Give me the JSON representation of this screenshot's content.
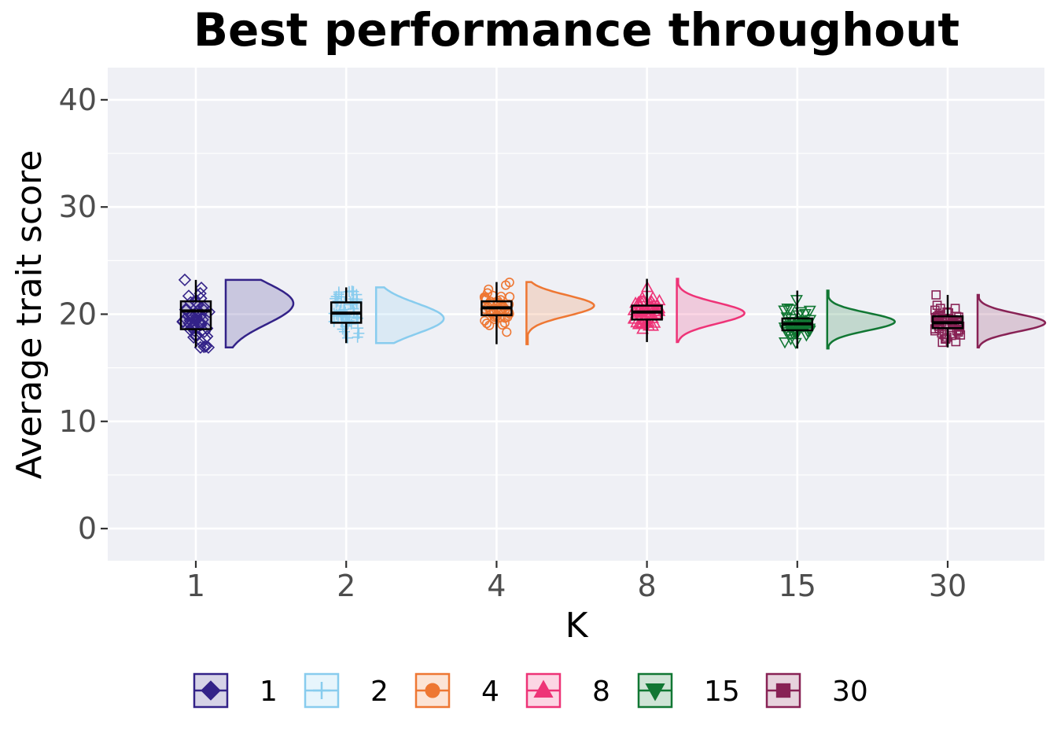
{
  "chart_data": {
    "type": "raincloud",
    "title": "Best performance throughout",
    "xlabel": "K",
    "ylabel": "Average trait score",
    "ylim": [
      -3,
      43
    ],
    "yticks": [
      0,
      10,
      20,
      30,
      40
    ],
    "grid": true,
    "legend": "bottom",
    "categories": [
      "1",
      "2",
      "4",
      "8",
      "15",
      "30"
    ],
    "series": [
      {
        "name": "1",
        "color": "#332288",
        "marker": "diamond",
        "min": 16.9,
        "q1": 18.6,
        "median": 20.3,
        "q3": 21.2,
        "max": 23.2,
        "mode": 21.0
      },
      {
        "name": "2",
        "color": "#88ccee",
        "marker": "plus",
        "min": 17.3,
        "q1": 19.2,
        "median": 20.1,
        "q3": 21.1,
        "max": 22.5,
        "mode": 19.6
      },
      {
        "name": "4",
        "color": "#ee7733",
        "marker": "circle",
        "min": 17.2,
        "q1": 19.9,
        "median": 20.6,
        "q3": 21.2,
        "max": 23.0,
        "mode": 20.8
      },
      {
        "name": "8",
        "color": "#ee3377",
        "marker": "triangle-up",
        "min": 17.4,
        "q1": 19.5,
        "median": 20.2,
        "q3": 20.8,
        "max": 23.3,
        "mode": 20.1
      },
      {
        "name": "15",
        "color": "#117733",
        "marker": "triangle-down",
        "min": 16.8,
        "q1": 18.5,
        "median": 19.1,
        "q3": 19.6,
        "max": 22.2,
        "mode": 19.3
      },
      {
        "name": "30",
        "color": "#882255",
        "marker": "square",
        "min": 16.9,
        "q1": 18.7,
        "median": 19.2,
        "q3": 19.8,
        "max": 21.8,
        "mode": 19.2
      }
    ]
  }
}
